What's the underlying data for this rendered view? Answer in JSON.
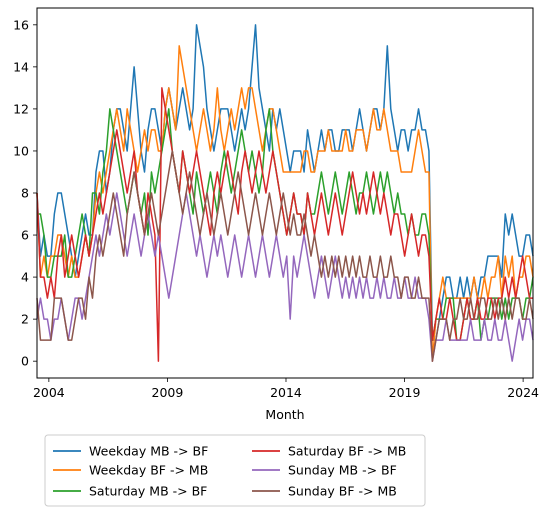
{
  "chart_data": {
    "type": "line",
    "title": "",
    "xlabel": "Month",
    "ylabel": "",
    "x_start": "2003-07",
    "x_end": "2024-06",
    "xlim": [
      "2003-07",
      "2024-06"
    ],
    "ylim": [
      -0.8,
      16.8
    ],
    "x_ticks": [
      "2004",
      "2009",
      "2014",
      "2019",
      "2024"
    ],
    "y_ticks": [
      "0",
      "2",
      "4",
      "6",
      "8",
      "10",
      "12",
      "14",
      "16"
    ],
    "grid": false,
    "legend_position": "bottom-center",
    "series": [
      {
        "name": "Weekday MB -> BF",
        "color": "#1f77b4",
        "values": [
          8,
          5,
          6,
          5,
          5,
          7,
          8,
          8,
          7,
          6,
          5,
          4,
          5,
          6,
          7,
          6,
          6,
          9,
          10,
          10,
          8,
          9,
          11,
          12,
          12,
          11,
          10,
          12,
          14,
          12,
          10,
          9,
          11,
          12,
          12,
          11,
          10,
          12,
          13,
          12,
          11,
          12,
          13,
          12,
          11,
          12,
          16,
          15,
          14,
          12,
          11,
          10,
          11,
          12,
          12,
          12,
          11,
          10,
          11,
          12,
          11,
          12,
          14,
          16,
          13,
          12,
          11,
          10,
          12,
          11,
          12,
          11,
          10,
          9,
          10,
          10,
          10,
          9,
          11,
          10,
          9,
          10,
          11,
          10,
          11,
          11,
          10,
          10,
          11,
          11,
          11,
          10,
          11,
          12,
          11,
          10,
          11,
          12,
          12,
          11,
          12,
          15,
          12,
          11,
          10,
          11,
          11,
          10,
          11,
          11,
          12,
          11,
          11,
          10,
          1,
          1,
          2,
          3,
          4,
          4,
          3,
          3,
          4,
          3,
          4,
          3,
          4,
          3,
          4,
          4,
          5,
          5,
          5,
          5,
          4,
          7,
          6,
          7,
          6,
          5,
          5,
          6,
          6,
          5
        ]
      },
      {
        "name": "Weekday BF -> MB",
        "color": "#ff7f0e",
        "values": [
          8,
          4,
          5,
          4,
          5,
          5,
          6,
          6,
          5,
          4,
          5,
          4,
          4,
          5,
          6,
          5,
          6,
          8,
          9,
          8,
          9,
          10,
          11,
          12,
          11,
          10,
          12,
          11,
          10,
          9,
          10,
          11,
          10,
          11,
          11,
          10,
          10,
          12,
          13,
          12,
          11,
          15,
          14,
          13,
          12,
          11,
          10,
          11,
          12,
          11,
          10,
          11,
          13,
          11,
          10,
          11,
          12,
          11,
          12,
          13,
          12,
          13,
          13,
          12,
          11,
          10,
          11,
          12,
          12,
          11,
          10,
          9,
          9,
          9,
          9,
          9,
          9,
          10,
          10,
          9,
          9,
          10,
          10,
          10,
          11,
          10,
          10,
          10,
          10,
          11,
          10,
          10,
          11,
          11,
          11,
          10,
          11,
          12,
          11,
          11,
          12,
          11,
          10,
          10,
          10,
          9,
          9,
          9,
          9,
          10,
          11,
          10,
          9,
          9,
          0,
          2,
          3,
          4,
          3,
          3,
          3,
          3,
          3,
          3,
          3,
          3,
          4,
          3,
          3,
          4,
          3,
          4,
          4,
          5,
          3,
          5,
          4,
          5,
          3,
          4,
          4,
          5,
          5,
          4
        ]
      },
      {
        "name": "Saturday MB -> BF",
        "color": "#2ca02c",
        "values": [
          7,
          7,
          6,
          4,
          4,
          5,
          5,
          5,
          6,
          4,
          4,
          5,
          6,
          7,
          6,
          5,
          8,
          8,
          7,
          9,
          10,
          12,
          11,
          10,
          9,
          8,
          7,
          8,
          9,
          8,
          7,
          8,
          6,
          9,
          8,
          9,
          10,
          11,
          12,
          10,
          9,
          8,
          10,
          9,
          8,
          7,
          9,
          8,
          7,
          8,
          9,
          8,
          7,
          9,
          10,
          9,
          8,
          9,
          10,
          11,
          10,
          9,
          10,
          9,
          8,
          9,
          11,
          12,
          10,
          9,
          8,
          7,
          6,
          7,
          8,
          7,
          7,
          6,
          8,
          7,
          7,
          8,
          9,
          8,
          7,
          8,
          9,
          8,
          7,
          8,
          9,
          8,
          7,
          8,
          8,
          9,
          8,
          7,
          8,
          9,
          8,
          9,
          8,
          7,
          8,
          7,
          7,
          6,
          7,
          6,
          6,
          7,
          7,
          6,
          1,
          2,
          2,
          2,
          3,
          3,
          3,
          1,
          1,
          2,
          3,
          2,
          2,
          3,
          1,
          2,
          2,
          3,
          3,
          3,
          2,
          3,
          2,
          3,
          3,
          3,
          2,
          3,
          3,
          4
        ]
      },
      {
        "name": "Saturday BF -> MB",
        "color": "#d62728",
        "values": [
          8,
          4,
          4,
          3,
          4,
          3,
          5,
          6,
          4,
          5,
          6,
          5,
          4,
          5,
          6,
          5,
          6,
          7,
          8,
          7,
          8,
          9,
          10,
          11,
          10,
          9,
          8,
          9,
          10,
          8,
          7,
          6,
          8,
          7,
          6,
          0,
          13,
          12,
          11,
          10,
          9,
          8,
          10,
          9,
          8,
          9,
          10,
          9,
          8,
          7,
          6,
          8,
          9,
          8,
          9,
          10,
          9,
          8,
          7,
          9,
          10,
          9,
          8,
          9,
          10,
          9,
          8,
          9,
          10,
          9,
          8,
          7,
          6,
          7,
          8,
          7,
          7,
          6,
          8,
          7,
          6,
          7,
          8,
          7,
          6,
          7,
          8,
          7,
          6,
          7,
          8,
          9,
          8,
          7,
          8,
          7,
          8,
          9,
          8,
          7,
          8,
          7,
          6,
          7,
          7,
          6,
          5,
          6,
          7,
          6,
          5,
          6,
          6,
          5,
          1,
          2,
          3,
          2,
          2,
          3,
          2,
          1,
          1,
          2,
          3,
          2,
          2,
          3,
          2,
          2,
          3,
          3,
          2,
          3,
          3,
          4,
          3,
          4,
          3,
          4,
          5,
          4,
          3,
          3
        ]
      },
      {
        "name": "Sunday MB -> BF",
        "color": "#9467bd",
        "values": [
          2,
          3,
          2,
          2,
          1,
          2,
          2,
          3,
          2,
          1,
          2,
          3,
          3,
          2,
          3,
          4,
          5,
          6,
          5,
          6,
          7,
          6,
          7,
          8,
          7,
          6,
          5,
          6,
          7,
          6,
          5,
          6,
          7,
          6,
          5,
          6,
          5,
          4,
          3,
          4,
          5,
          6,
          7,
          8,
          7,
          6,
          5,
          6,
          5,
          4,
          5,
          6,
          5,
          6,
          5,
          4,
          5,
          6,
          5,
          4,
          5,
          6,
          5,
          4,
          5,
          6,
          5,
          4,
          5,
          6,
          5,
          4,
          5,
          2,
          5,
          4,
          5,
          6,
          5,
          4,
          3,
          4,
          5,
          4,
          3,
          4,
          5,
          4,
          3,
          4,
          3,
          4,
          3,
          4,
          3,
          4,
          3,
          3,
          4,
          3,
          4,
          3,
          3,
          4,
          3,
          3,
          4,
          3,
          3,
          4,
          3,
          3,
          3,
          2,
          0,
          1,
          1,
          1,
          2,
          1,
          1,
          1,
          1,
          1,
          1,
          2,
          1,
          1,
          1,
          2,
          1,
          1,
          2,
          1,
          1,
          2,
          1,
          0,
          1,
          2,
          1,
          2,
          2,
          1
        ]
      },
      {
        "name": "Sunday BF -> MB",
        "color": "#8c564b",
        "values": [
          3,
          1,
          1,
          1,
          1,
          3,
          3,
          3,
          2,
          1,
          1,
          2,
          3,
          3,
          2,
          4,
          3,
          5,
          6,
          5,
          6,
          7,
          8,
          7,
          6,
          5,
          7,
          8,
          9,
          8,
          7,
          6,
          7,
          8,
          7,
          6,
          7,
          8,
          9,
          10,
          9,
          8,
          7,
          8,
          9,
          8,
          7,
          6,
          7,
          8,
          7,
          6,
          7,
          8,
          7,
          6,
          7,
          8,
          9,
          8,
          7,
          6,
          7,
          8,
          7,
          6,
          7,
          8,
          7,
          6,
          7,
          8,
          7,
          6,
          7,
          6,
          6,
          7,
          6,
          5,
          6,
          5,
          4,
          5,
          4,
          5,
          4,
          5,
          4,
          5,
          4,
          5,
          4,
          5,
          4,
          4,
          5,
          4,
          4,
          5,
          4,
          4,
          5,
          4,
          4,
          3,
          4,
          4,
          3,
          3,
          4,
          3,
          3,
          3,
          0,
          1,
          2,
          2,
          2,
          1,
          2,
          2,
          3,
          2,
          2,
          3,
          2,
          2,
          3,
          3,
          2,
          2,
          3,
          2,
          3,
          2,
          3,
          2,
          3,
          3,
          2,
          2,
          3,
          2
        ]
      }
    ]
  }
}
